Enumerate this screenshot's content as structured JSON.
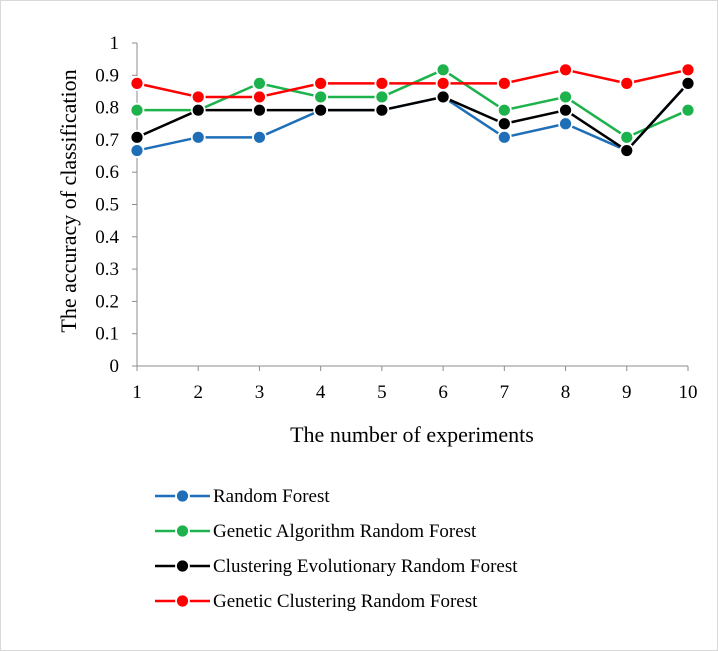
{
  "chart_data": {
    "type": "line",
    "title": "",
    "xlabel": "The number of experiments",
    "ylabel": "The accuracy of classification",
    "x": [
      1,
      2,
      3,
      4,
      5,
      6,
      7,
      8,
      9,
      10
    ],
    "ylim": [
      0,
      1
    ],
    "yticks": [
      "0",
      "0.1",
      "0.2",
      "0.3",
      "0.4",
      "0.5",
      "0.6",
      "0.7",
      "0.8",
      "0.9",
      "1"
    ],
    "grid": false,
    "legend_position": "bottom",
    "series": [
      {
        "name": "Random Forest",
        "color": "#1f6fb8",
        "values": [
          0.667,
          0.708,
          0.708,
          0.792,
          0.792,
          0.833,
          0.708,
          0.75,
          0.667,
          0.875
        ]
      },
      {
        "name": "Genetic Algorithm Random Forest",
        "color": "#1db24b",
        "values": [
          0.792,
          0.792,
          0.875,
          0.833,
          0.833,
          0.917,
          0.792,
          0.833,
          0.708,
          0.792
        ]
      },
      {
        "name": "Clustering Evolutionary Random Forest",
        "color": "#000000",
        "values": [
          0.708,
          0.792,
          0.792,
          0.792,
          0.792,
          0.833,
          0.75,
          0.792,
          0.667,
          0.875
        ]
      },
      {
        "name": "Genetic Clustering Random Forest",
        "color": "#ff0000",
        "values": [
          0.875,
          0.833,
          0.833,
          0.875,
          0.875,
          0.875,
          0.875,
          0.917,
          0.875,
          0.917
        ]
      }
    ]
  }
}
